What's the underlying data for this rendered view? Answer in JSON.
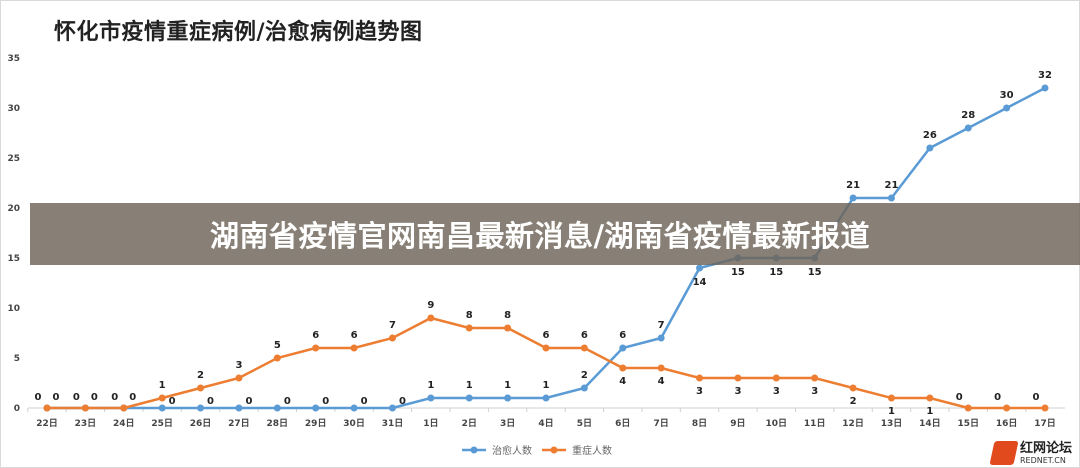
{
  "chart_data": {
    "type": "line",
    "title": "怀化市疫情重症病例/治愈病例趋势图",
    "categories": [
      "22日",
      "23日",
      "24日",
      "25日",
      "26日",
      "27日",
      "28日",
      "29日",
      "30日",
      "31日",
      "1日",
      "2日",
      "3日",
      "4日",
      "5日",
      "6日",
      "7日",
      "8日",
      "9日",
      "10日",
      "11日",
      "12日",
      "13日",
      "14日",
      "15日",
      "16日",
      "17日"
    ],
    "series": [
      {
        "name": "治愈人数",
        "color": "#5b9bd5",
        "values": [
          0,
          0,
          0,
          0,
          0,
          0,
          0,
          0,
          0,
          0,
          1,
          1,
          1,
          1,
          2,
          6,
          7,
          14,
          15,
          15,
          15,
          21,
          21,
          26,
          28,
          30,
          32
        ]
      },
      {
        "name": "重症人数",
        "color": "#ed7d31",
        "values": [
          0,
          0,
          0,
          1,
          2,
          3,
          5,
          6,
          6,
          7,
          9,
          8,
          8,
          6,
          6,
          4,
          4,
          3,
          3,
          3,
          3,
          2,
          1,
          1,
          0,
          0,
          0
        ]
      }
    ],
    "ylim": [
      0,
      35
    ],
    "yticks": [
      0,
      5,
      10,
      15,
      20,
      25,
      30,
      35
    ],
    "xlabel": "",
    "ylabel": "",
    "legend": "bottom-center",
    "grid": false
  },
  "banner": {
    "text": "湖南省疫情官网南昌最新消息/湖南省疫情最新报道"
  },
  "watermark": {
    "name": "红网论坛",
    "domain": "REDNET.CN"
  }
}
